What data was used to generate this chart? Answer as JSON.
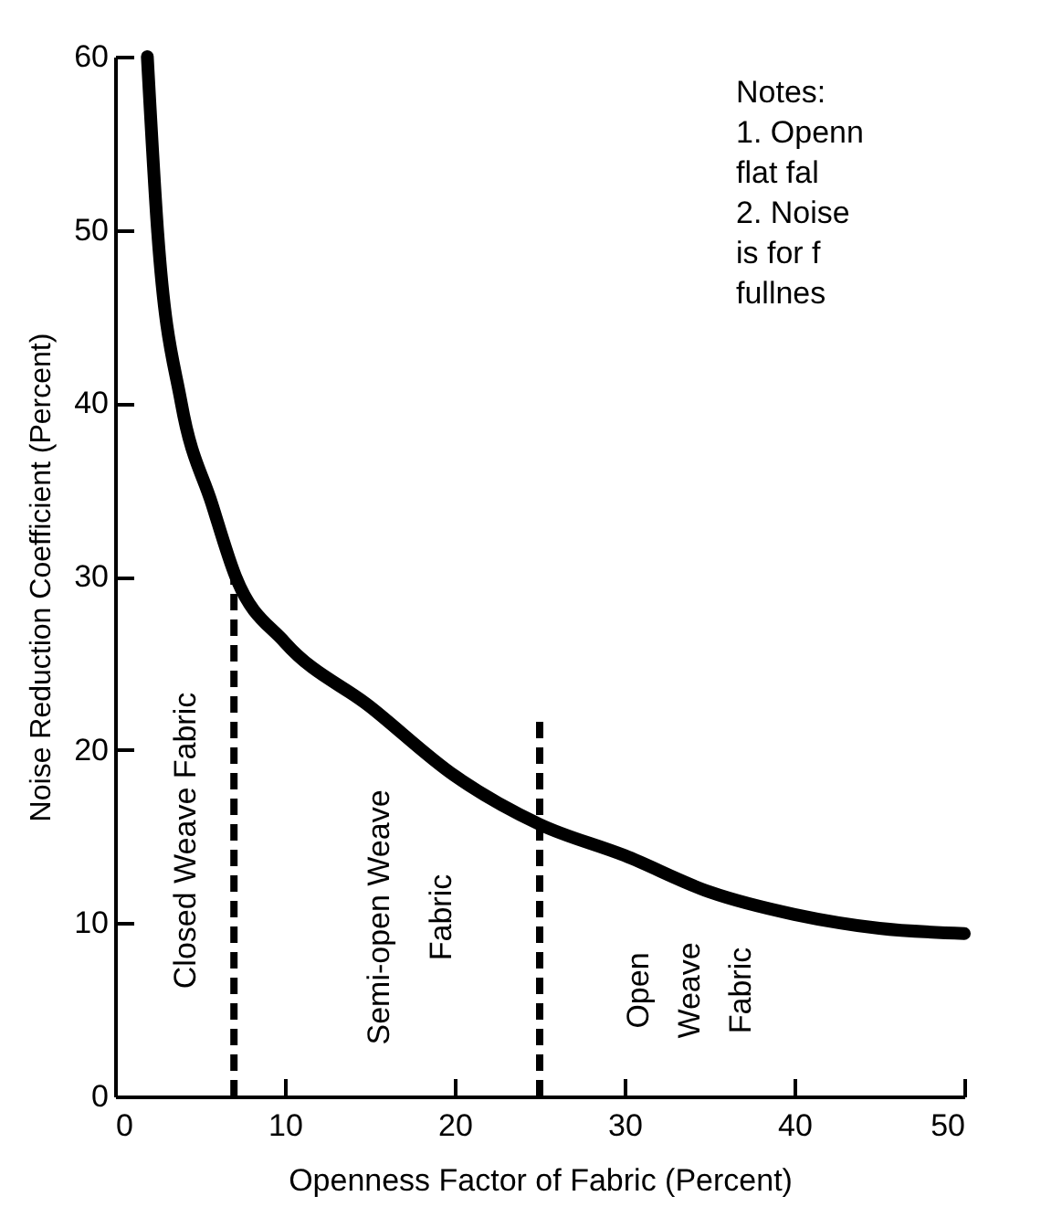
{
  "chart_data": {
    "type": "line",
    "xlabel": "Openness Factor of Fabric (Percent)",
    "ylabel": "Noise Reduction Coefficient (Percent)",
    "xlim": [
      0,
      50
    ],
    "ylim": [
      0,
      60
    ],
    "xticks": [
      0,
      10,
      20,
      30,
      40,
      50
    ],
    "yticks": [
      0,
      10,
      20,
      30,
      40,
      50,
      60
    ],
    "grid": false,
    "series": [
      {
        "color": "#000000",
        "line_style": "solid",
        "x": [
          1.9,
          2.5,
          3.9,
          5.7,
          7.1,
          10,
          15,
          20,
          25,
          30,
          35,
          40,
          45,
          50
        ],
        "values": [
          60,
          50,
          40,
          34.2,
          30,
          26.2,
          22.5,
          18.5,
          15.7,
          13.9,
          11.8,
          10.5,
          9.7,
          9.4
        ]
      },
      {
        "color": "#000000",
        "line_style": "dashed",
        "x": [
          7,
          7
        ],
        "values": [
          0,
          30
        ]
      },
      {
        "color": "#000000",
        "line_style": "dashed",
        "x": [
          25,
          25
        ],
        "values": [
          0,
          22
        ]
      }
    ],
    "annotations": [
      "Closed Weave  Fabric",
      "Semi-open Weave\nFabric",
      "Open\nWeave\nFabric",
      "Notes:\n1.  Openn\n     flat fal\n2.  Noise\n     is for f\n     fullnes"
    ]
  }
}
